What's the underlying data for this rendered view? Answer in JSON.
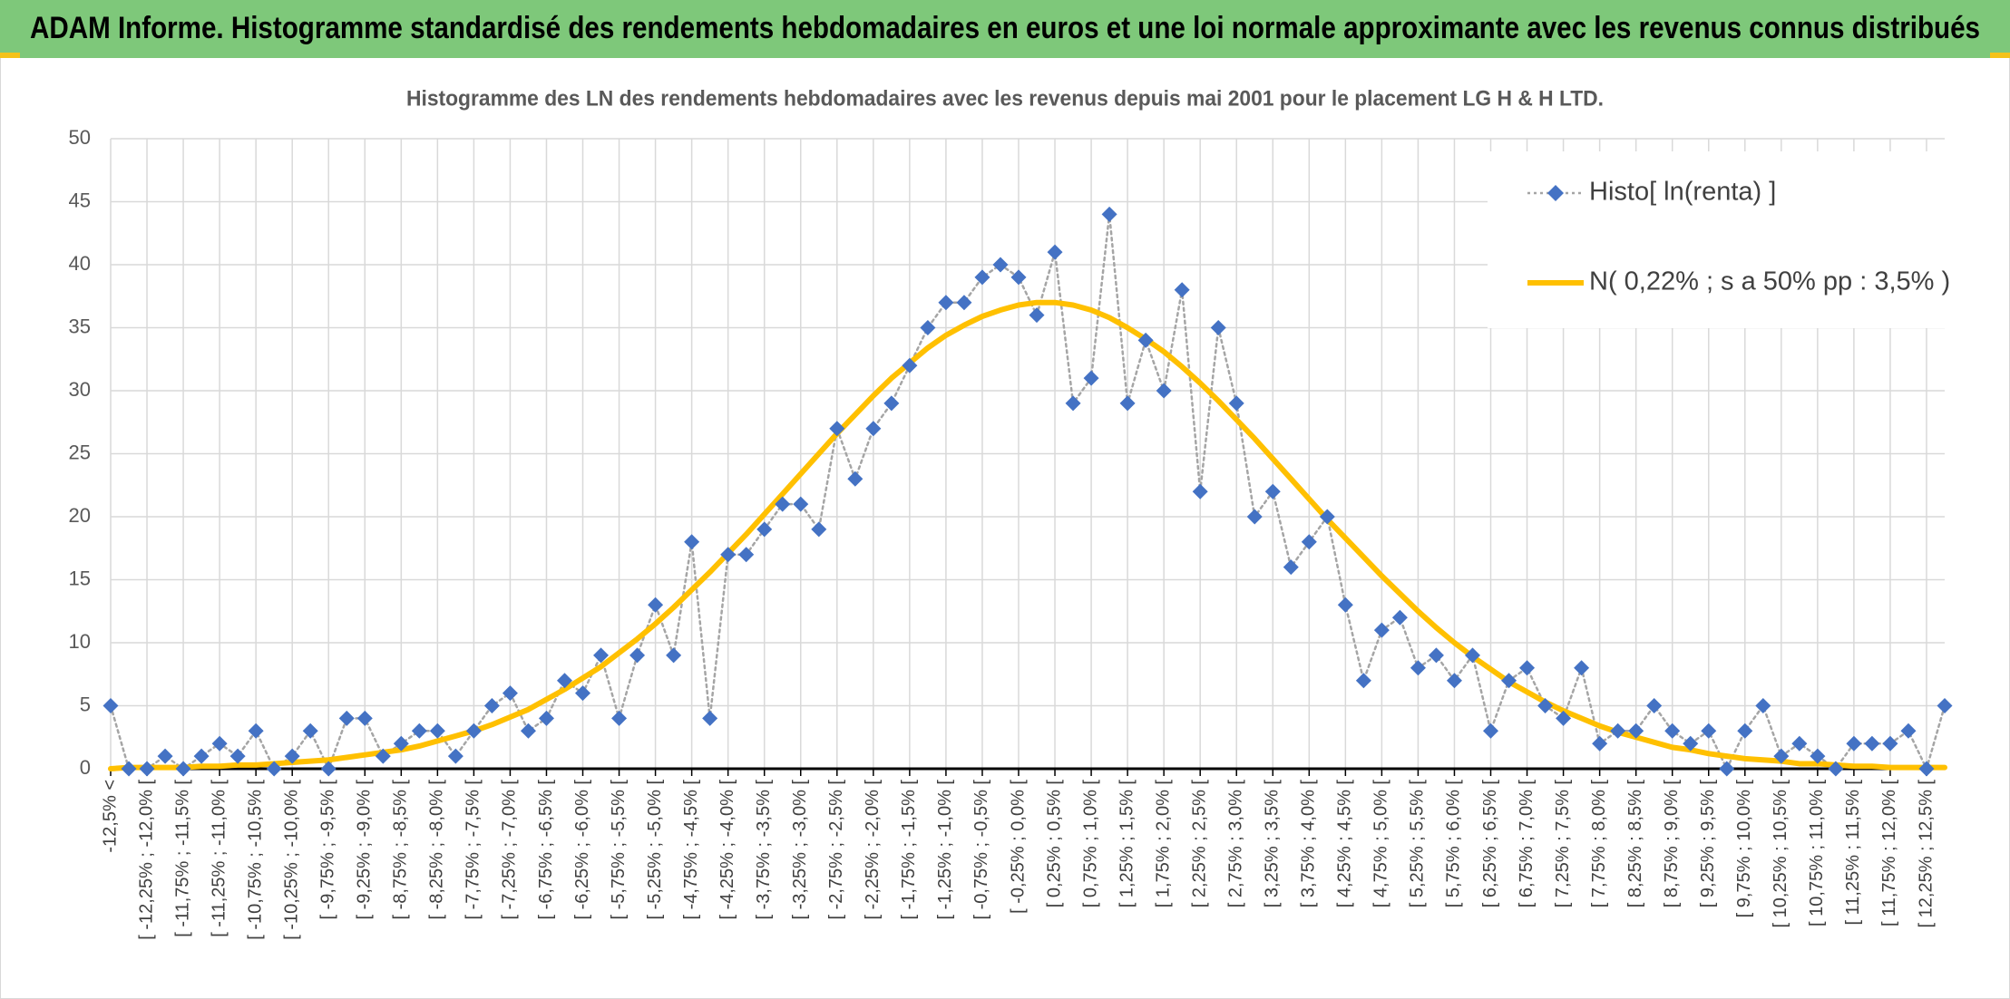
{
  "chart_data": {
    "type": "line",
    "banner": "ADAM Informe. Histogramme standardisé des rendements hebdomadaires en euros et une loi normale approximante avec les revenus connus distribués",
    "title": "Histogramme des LN des rendements hebdomadaires avec les revenus depuis mai 2001 pour le placement LG H & H LTD.",
    "categories": [
      "-12,5% <",
      null,
      "[ -12,25% ; -12,0% [",
      null,
      "[ -11,75% ; -11,5% [",
      null,
      "[ -11,25% ; -11,0% [",
      null,
      "[ -10,75% ; -10,5% [",
      null,
      "[ -10,25% ; -10,0% [",
      null,
      "[ -9,75% ; -9,5% [",
      null,
      "[ -9,25% ; -9,0% [",
      null,
      "[ -8,75% ; -8,5% [",
      null,
      "[ -8,25% ; -8,0% [",
      null,
      "[ -7,75% ; -7,5% [",
      null,
      "[ -7,25% ; -7,0% [",
      null,
      "[ -6,75% ; -6,5% [",
      null,
      "[ -6,25% ; -6,0% [",
      null,
      "[ -5,75% ; -5,5% [",
      null,
      "[ -5,25% ; -5,0% [",
      null,
      "[ -4,75% ; -4,5% [",
      null,
      "[ -4,25% ; -4,0% [",
      null,
      "[ -3,75% ; -3,5% [",
      null,
      "[ -3,25% ; -3,0% [",
      null,
      "[ -2,75% ; -2,5% [",
      null,
      "[ -2,25% ; -2,0% [",
      null,
      "[ -1,75% ; -1,5% [",
      null,
      "[ -1,25% ; -1,0% [",
      null,
      "[ -0,75% ; -0,5% [",
      null,
      "[ -0,25% ; 0,0% [",
      null,
      "[ 0,25% ; 0,5% [",
      null,
      "[ 0,75% ; 1,0% [",
      null,
      "[ 1,25% ; 1,5% [",
      null,
      "[ 1,75% ; 2,0% [",
      null,
      "[ 2,25% ; 2,5% [",
      null,
      "[ 2,75% ; 3,0% [",
      null,
      "[ 3,25% ; 3,5% [",
      null,
      "[ 3,75% ; 4,0% [",
      null,
      "[ 4,25% ; 4,5% [",
      null,
      "[ 4,75% ; 5,0% [",
      null,
      "[ 5,25% ; 5,5% [",
      null,
      "[ 5,75% ; 6,0% [",
      null,
      "[ 6,25% ; 6,5% [",
      null,
      "[ 6,75% ; 7,0% [",
      null,
      "[ 7,25% ; 7,5% [",
      null,
      "[ 7,75% ; 8,0% [",
      null,
      "[ 8,25% ; 8,5% [",
      null,
      "[ 8,75% ; 9,0% [",
      null,
      "[ 9,25% ; 9,5% [",
      null,
      "[ 9,75% ; 10,0% [",
      null,
      "[ 10,25% ; 10,5% [",
      null,
      "[ 10,75% ; 11,0% [",
      null,
      "[ 11,25% ; 11,5% [",
      null,
      "[ 11,75% ; 12,0% [",
      null,
      "[ 12,25% ; 12,5% [",
      null
    ],
    "series": [
      {
        "name": "Histo[ ln(renta) ]",
        "color": "#4472c4",
        "line_color": "#a5a5a5",
        "line_style": "dotted",
        "marker": "diamond",
        "values": [
          5,
          0,
          0,
          1,
          0,
          1,
          2,
          1,
          3,
          0,
          1,
          3,
          0,
          4,
          4,
          1,
          2,
          3,
          3,
          1,
          3,
          5,
          6,
          3,
          4,
          7,
          6,
          9,
          4,
          9,
          13,
          9,
          18,
          4,
          17,
          17,
          19,
          21,
          21,
          19,
          27,
          23,
          27,
          29,
          32,
          35,
          37,
          37,
          39,
          40,
          39,
          36,
          41,
          29,
          31,
          44,
          29,
          34,
          30,
          38,
          22,
          35,
          29,
          20,
          22,
          16,
          18,
          20,
          13,
          7,
          11,
          12,
          8,
          9,
          7,
          9,
          3,
          7,
          8,
          5,
          4,
          8,
          2,
          3,
          3,
          5,
          3,
          2,
          3,
          0,
          3,
          5,
          1,
          2,
          1,
          0,
          2,
          2,
          2,
          3,
          0,
          5
        ]
      },
      {
        "name": "N( 0,22% ; s a 50% pp : 3,5% )",
        "color": "#ffc000",
        "line_style": "solid",
        "marker": "none",
        "values": [
          0.0,
          0.1,
          0.1,
          0.1,
          0.1,
          0.2,
          0.2,
          0.3,
          0.3,
          0.4,
          0.5,
          0.6,
          0.7,
          0.9,
          1.1,
          1.3,
          1.5,
          1.8,
          2.2,
          2.6,
          3.0,
          3.5,
          4.1,
          4.7,
          5.5,
          6.3,
          7.2,
          8.1,
          9.2,
          10.3,
          11.5,
          12.8,
          14.2,
          15.6,
          17.1,
          18.6,
          20.2,
          21.8,
          23.4,
          25.0,
          26.6,
          28.1,
          29.6,
          31.0,
          32.2,
          33.4,
          34.4,
          35.2,
          35.9,
          36.4,
          36.8,
          37.0,
          37.0,
          36.8,
          36.4,
          35.8,
          35.0,
          34.1,
          33.1,
          31.9,
          30.6,
          29.2,
          27.7,
          26.2,
          24.6,
          23.0,
          21.4,
          19.8,
          18.3,
          16.8,
          15.3,
          13.9,
          12.5,
          11.2,
          10.0,
          8.9,
          7.9,
          6.9,
          6.1,
          5.3,
          4.6,
          4.0,
          3.4,
          2.9,
          2.5,
          2.1,
          1.7,
          1.5,
          1.2,
          1.0,
          0.8,
          0.7,
          0.6,
          0.4,
          0.4,
          0.3,
          0.2,
          0.2,
          0.1,
          0.1,
          0.1,
          0.1
        ]
      }
    ],
    "ylim": [
      0,
      50
    ],
    "yticks": [
      0,
      5,
      10,
      15,
      20,
      25,
      30,
      35,
      40,
      45,
      50
    ],
    "grid": true,
    "legend": "top-right"
  }
}
